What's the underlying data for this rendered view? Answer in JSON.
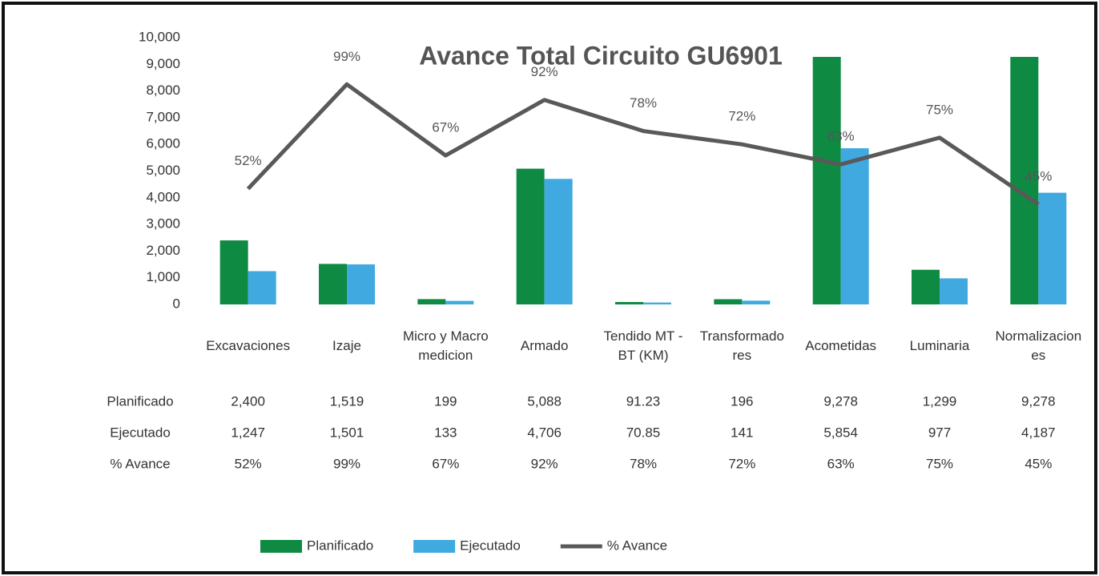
{
  "chart_data": {
    "type": "bar_line",
    "title": "Avance Total Circuito GU6901",
    "categories": [
      "Excavaciones",
      "Izaje",
      "Micro y Macromedicion",
      "Armado",
      "Tendido MT - BT (KM)",
      "Transformadores",
      "Acometidas",
      "Luminaria",
      "Normalizaciones"
    ],
    "series": [
      {
        "name": "Planificado",
        "color": "#0e8a43",
        "type": "bar",
        "values": [
          2400,
          1519,
          199,
          5088,
          91.23,
          196,
          9278,
          1299,
          9278
        ],
        "value_labels": [
          "2,400",
          "1,519",
          "199",
          "5,088",
          "91.23",
          "196",
          "9,278",
          "1,299",
          "9,278"
        ]
      },
      {
        "name": "Ejecutado",
        "color": "#3fa9e0",
        "type": "bar",
        "values": [
          1247,
          1501,
          133,
          4706,
          70.85,
          141,
          5854,
          977,
          4187
        ],
        "value_labels": [
          "1,247",
          "1,501",
          "133",
          "4,706",
          "70.85",
          "141",
          "5,854",
          "977",
          "4,187"
        ]
      },
      {
        "name": "% Avance",
        "color": "#595959",
        "type": "line",
        "axis": "y2",
        "values": [
          52,
          99,
          67,
          92,
          78,
          72,
          63,
          75,
          45
        ],
        "value_labels": [
          "52%",
          "99%",
          "67%",
          "92%",
          "78%",
          "72%",
          "63%",
          "75%",
          "45%"
        ]
      }
    ],
    "ylim": [
      0,
      10000
    ],
    "yticks": [
      0,
      {
        "value": 1000,
        "label": "1,000"
      },
      {
        "value": 2000,
        "label": "2,000"
      },
      {
        "value": 3000,
        "label": "3,000"
      },
      {
        "value": 4000,
        "label": "4,000"
      },
      {
        "value": 5000,
        "label": "5,000"
      },
      {
        "value": 6000,
        "label": "6,000"
      },
      {
        "value": 7000,
        "label": "7,000"
      },
      {
        "value": 8000,
        "label": "8,000"
      },
      {
        "value": 9000,
        "label": "9,000"
      },
      {
        "value": 10000,
        "label": "10,000"
      }
    ],
    "y2lim": [
      0,
      120
    ],
    "legend": "bottom",
    "data_table": true
  }
}
